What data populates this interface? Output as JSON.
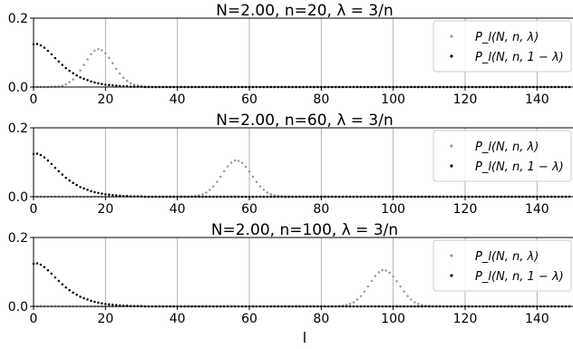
{
  "x_label": "l",
  "legend_labels": [
    "P_l(N, n, λ)",
    "P_l(N, n, 1 − λ)"
  ],
  "colors": {
    "series_gray": "#999999",
    "series_black": "#000000",
    "grid": "#b0b0b0",
    "axis": "#000000"
  },
  "chart_data": [
    {
      "type": "scatter",
      "title": "N=2.00, n=20, λ = 3/n",
      "xlim": [
        0,
        150
      ],
      "ylim": [
        0,
        0.2
      ],
      "xticks": [
        0,
        20,
        40,
        60,
        80,
        100,
        120,
        140
      ],
      "yticks": [
        0.0,
        0.2
      ],
      "xtick_labels": [
        "0",
        "20",
        "40",
        "60",
        "80",
        "100",
        "120",
        "140"
      ],
      "ytick_labels": [
        "0.0",
        "0.2"
      ],
      "grid": "vertical",
      "legend": "top-right",
      "series": [
        {
          "name": "P_l(N, n, λ)",
          "color": "#999999",
          "x_range": [
            0,
            149
          ],
          "values": [
            0.0,
            0.0,
            0.0,
            0.0,
            0.0,
            0.001,
            0.001,
            0.002,
            0.004,
            0.008,
            0.014,
            0.022,
            0.034,
            0.048,
            0.064,
            0.08,
            0.095,
            0.105,
            0.11,
            0.107,
            0.098,
            0.085,
            0.069,
            0.053,
            0.039,
            0.027,
            0.018,
            0.011,
            0.007,
            0.004,
            0.002,
            0.001,
            0.001,
            0.0,
            0.0
          ]
        },
        {
          "name": "P_l(N, n, 1 − λ)",
          "color": "#000000",
          "x_range": [
            0,
            149
          ],
          "values": [
            0.124,
            0.125,
            0.121,
            0.114,
            0.105,
            0.095,
            0.084,
            0.074,
            0.064,
            0.055,
            0.047,
            0.04,
            0.034,
            0.028,
            0.024,
            0.02,
            0.016,
            0.013,
            0.011,
            0.009,
            0.007,
            0.006,
            0.005,
            0.004,
            0.003,
            0.002,
            0.002,
            0.001,
            0.001,
            0.001,
            0.001,
            0.0
          ]
        }
      ]
    },
    {
      "type": "scatter",
      "title": "N=2.00, n=60, λ = 3/n",
      "xlim": [
        0,
        150
      ],
      "ylim": [
        0,
        0.2
      ],
      "xticks": [
        0,
        20,
        40,
        60,
        80,
        100,
        120,
        140
      ],
      "yticks": [
        0.0,
        0.2
      ],
      "xtick_labels": [
        "0",
        "20",
        "40",
        "60",
        "80",
        "100",
        "120",
        "140"
      ],
      "ytick_labels": [
        "0.0",
        "0.2"
      ],
      "grid": "vertical",
      "legend": "top-right",
      "series": [
        {
          "name": "P_l(N, n, λ)",
          "color": "#999999",
          "x_range": [
            0,
            149
          ],
          "values": [
            0.0,
            0.0,
            0.0,
            0.0,
            0.0,
            0.0,
            0.0,
            0.0,
            0.0,
            0.0,
            0.0,
            0.0,
            0.0,
            0.0,
            0.0,
            0.0,
            0.0,
            0.0,
            0.0,
            0.0,
            0.0,
            0.0,
            0.0,
            0.0,
            0.0,
            0.0,
            0.0,
            0.0,
            0.0,
            0.0,
            0.0,
            0.0,
            0.0,
            0.0,
            0.0,
            0.0,
            0.0,
            0.0,
            0.0,
            0.0,
            0.0,
            0.0,
            0.0,
            0.0,
            0.001,
            0.002,
            0.004,
            0.007,
            0.012,
            0.02,
            0.03,
            0.043,
            0.058,
            0.074,
            0.088,
            0.099,
            0.105,
            0.104,
            0.098,
            0.087,
            0.073,
            0.058,
            0.043,
            0.03,
            0.02,
            0.012,
            0.007,
            0.004,
            0.002,
            0.001,
            0.0
          ]
        },
        {
          "name": "P_l(N, n, 1 − λ)",
          "color": "#000000",
          "x_range": [
            0,
            149
          ],
          "values": [
            0.124,
            0.125,
            0.121,
            0.114,
            0.105,
            0.095,
            0.084,
            0.074,
            0.064,
            0.055,
            0.047,
            0.04,
            0.034,
            0.028,
            0.024,
            0.02,
            0.016,
            0.013,
            0.011,
            0.009,
            0.007,
            0.006,
            0.005,
            0.004,
            0.003,
            0.002,
            0.002,
            0.001,
            0.001,
            0.001,
            0.001,
            0.0
          ]
        }
      ]
    },
    {
      "type": "scatter",
      "title": "N=2.00, n=100, λ = 3/n",
      "xlim": [
        0,
        150
      ],
      "ylim": [
        0,
        0.2
      ],
      "xticks": [
        0,
        20,
        40,
        60,
        80,
        100,
        120,
        140
      ],
      "yticks": [
        0.0,
        0.2
      ],
      "xtick_labels": [
        "0",
        "20",
        "40",
        "60",
        "80",
        "100",
        "120",
        "140"
      ],
      "ytick_labels": [
        "0.0",
        "0.2"
      ],
      "grid": "vertical",
      "legend": "top-right",
      "series": [
        {
          "name": "P_l(N, n, λ)",
          "color": "#999999",
          "x_range": [
            0,
            149
          ],
          "values": [
            0.0,
            0.0,
            0.0,
            0.0,
            0.0,
            0.0,
            0.0,
            0.0,
            0.0,
            0.0,
            0.0,
            0.0,
            0.0,
            0.0,
            0.0,
            0.0,
            0.0,
            0.0,
            0.0,
            0.0,
            0.0,
            0.0,
            0.0,
            0.0,
            0.0,
            0.0,
            0.0,
            0.0,
            0.0,
            0.0,
            0.0,
            0.0,
            0.0,
            0.0,
            0.0,
            0.0,
            0.0,
            0.0,
            0.0,
            0.0,
            0.0,
            0.0,
            0.0,
            0.0,
            0.0,
            0.0,
            0.0,
            0.0,
            0.0,
            0.0,
            0.0,
            0.0,
            0.0,
            0.0,
            0.0,
            0.0,
            0.0,
            0.0,
            0.0,
            0.0,
            0.0,
            0.0,
            0.0,
            0.0,
            0.0,
            0.0,
            0.0,
            0.0,
            0.0,
            0.0,
            0.0,
            0.0,
            0.0,
            0.0,
            0.0,
            0.0,
            0.0,
            0.0,
            0.0,
            0.0,
            0.0,
            0.0,
            0.0,
            0.0,
            0.0,
            0.001,
            0.002,
            0.004,
            0.007,
            0.012,
            0.02,
            0.03,
            0.043,
            0.058,
            0.074,
            0.088,
            0.099,
            0.105,
            0.104,
            0.098,
            0.087,
            0.073,
            0.058,
            0.043,
            0.03,
            0.02,
            0.012,
            0.007,
            0.004,
            0.002,
            0.001,
            0.0
          ]
        },
        {
          "name": "P_l(N, n, 1 − λ)",
          "color": "#000000",
          "x_range": [
            0,
            149
          ],
          "values": [
            0.124,
            0.125,
            0.121,
            0.114,
            0.105,
            0.095,
            0.084,
            0.074,
            0.064,
            0.055,
            0.047,
            0.04,
            0.034,
            0.028,
            0.024,
            0.02,
            0.016,
            0.013,
            0.011,
            0.009,
            0.007,
            0.006,
            0.005,
            0.004,
            0.003,
            0.002,
            0.002,
            0.001,
            0.001,
            0.001,
            0.001,
            0.0
          ]
        }
      ]
    }
  ]
}
